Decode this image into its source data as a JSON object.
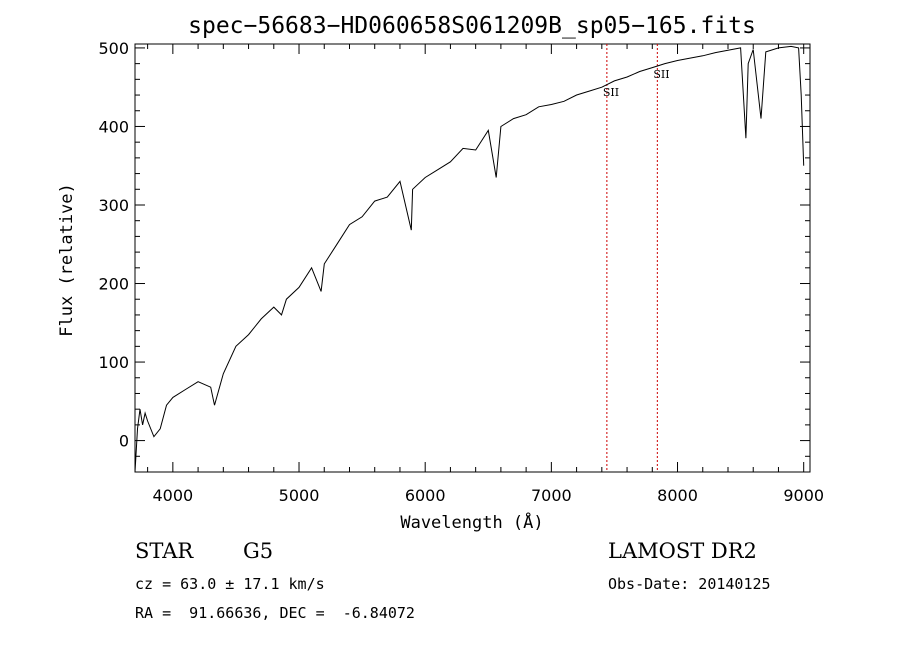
{
  "chart_data": {
    "type": "line",
    "title": "spec−56683−HD060658S061209B_sp05−165.fits",
    "xlabel": "Wavelength (Å)",
    "ylabel": "Flux (relative)",
    "xlim": [
      3700,
      9050
    ],
    "ylim": [
      -40,
      505
    ],
    "xticks": [
      4000,
      5000,
      6000,
      7000,
      8000,
      9000
    ],
    "yticks": [
      0,
      100,
      200,
      300,
      400,
      500
    ],
    "grid": false,
    "color": "#000000",
    "line_markers": [
      {
        "label": "SII",
        "x": 7440,
        "color": "#cc0000"
      },
      {
        "label": "SII",
        "x": 7840,
        "color": "#cc0000"
      }
    ],
    "x": [
      3700,
      3720,
      3740,
      3760,
      3780,
      3800,
      3850,
      3900,
      3950,
      4000,
      4100,
      4200,
      4300,
      4330,
      4400,
      4500,
      4600,
      4700,
      4800,
      4861,
      4900,
      5000,
      5100,
      5175,
      5200,
      5300,
      5400,
      5500,
      5600,
      5700,
      5800,
      5890,
      5900,
      6000,
      6100,
      6200,
      6300,
      6400,
      6500,
      6563,
      6600,
      6700,
      6800,
      6900,
      7000,
      7100,
      7200,
      7300,
      7400,
      7500,
      7600,
      7700,
      7800,
      7900,
      8000,
      8100,
      8200,
      8300,
      8400,
      8500,
      8542,
      8560,
      8600,
      8662,
      8700,
      8800,
      8900,
      8960,
      8980,
      9000
    ],
    "y": [
      -40,
      15,
      40,
      20,
      35,
      25,
      5,
      15,
      45,
      55,
      65,
      75,
      68,
      45,
      85,
      120,
      135,
      155,
      170,
      160,
      180,
      195,
      220,
      190,
      225,
      250,
      275,
      285,
      305,
      310,
      330,
      268,
      320,
      335,
      345,
      355,
      372,
      370,
      395,
      335,
      400,
      410,
      415,
      425,
      428,
      432,
      440,
      445,
      450,
      458,
      463,
      470,
      475,
      480,
      484,
      487,
      490,
      494,
      497,
      500,
      385,
      480,
      498,
      410,
      495,
      500,
      502,
      500,
      440,
      350
    ]
  },
  "annotations": {
    "obj_type": "STAR",
    "subclass": "G5",
    "survey": "LAMOST DR2",
    "cz": "cz = 63.0 ± 17.1 km/s",
    "obs_date": "Obs-Date: 20140125",
    "coords": "RA =  91.66636, DEC =  -6.84072"
  }
}
